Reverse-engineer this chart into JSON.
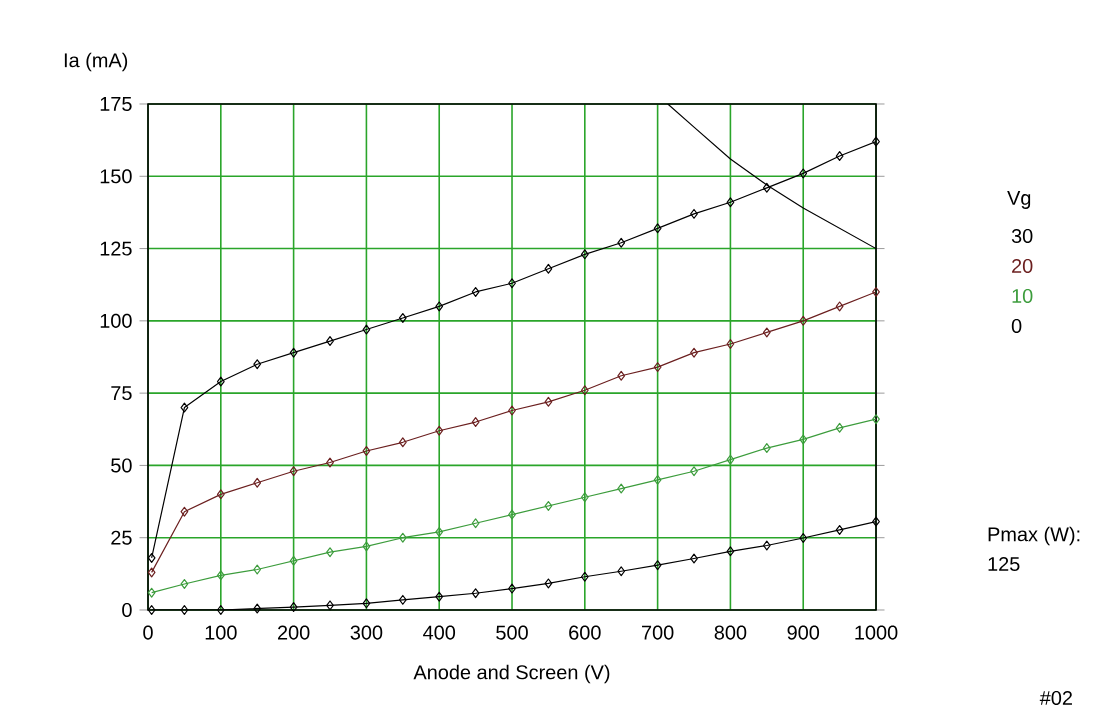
{
  "chart_data": {
    "type": "line",
    "xlabel": "Anode and Screen (V)",
    "ylabel": "Ia (mA)",
    "legend_title": "Vg",
    "x": [
      5,
      50,
      100,
      150,
      200,
      250,
      300,
      350,
      400,
      450,
      500,
      550,
      600,
      650,
      700,
      750,
      800,
      850,
      900,
      950,
      1000
    ],
    "series": [
      {
        "name": "30",
        "color": "#000000",
        "values": [
          18,
          70,
          79,
          85,
          89,
          93,
          97,
          101,
          105,
          110,
          113,
          118,
          123,
          127,
          132,
          137,
          141,
          146,
          151,
          157,
          162
        ]
      },
      {
        "name": "20",
        "color": "#6b1f1f",
        "values": [
          13,
          34,
          40,
          44,
          48,
          51,
          55,
          58,
          62,
          65,
          69,
          72,
          76,
          81,
          84,
          89,
          92,
          96,
          100,
          105,
          110
        ]
      },
      {
        "name": "10",
        "color": "#3c9c3c",
        "values": [
          6,
          9,
          12,
          14,
          17,
          20,
          22,
          25,
          27,
          30,
          33,
          36,
          39,
          42,
          45,
          48,
          52,
          56,
          59,
          63,
          66
        ]
      },
      {
        "name": "0",
        "color": "#000000",
        "values": [
          0,
          0,
          0,
          0.5,
          1,
          1.6,
          2.3,
          3.5,
          4.6,
          5.8,
          7.4,
          9.2,
          11.5,
          13.4,
          15.5,
          17.8,
          20.3,
          22.3,
          24.9,
          27.7,
          30.6
        ]
      },
      {
        "color": "#000000",
        "marker": "none",
        "x": [
          714,
          750,
          800,
          850,
          900,
          950,
          1000
        ],
        "values": [
          175,
          167,
          156,
          147,
          139,
          132,
          125
        ]
      }
    ],
    "xlim": [
      0,
      1000
    ],
    "ylim": [
      0,
      175
    ],
    "xticks": [
      0,
      100,
      200,
      300,
      400,
      500,
      600,
      700,
      800,
      900,
      1000
    ],
    "yticks": [
      0,
      25,
      50,
      75,
      100,
      125,
      150,
      175
    ],
    "grid": true,
    "legend": "right",
    "marker": "diamond",
    "annotations": [
      "Pmax (W):",
      "125",
      "#02"
    ]
  }
}
